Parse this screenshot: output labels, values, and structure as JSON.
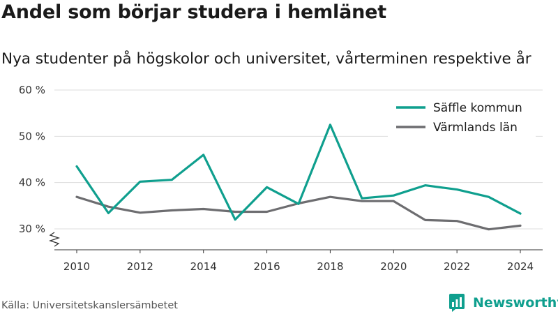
{
  "header": {
    "title": "Andel som börjar studera i hemlänet",
    "subtitle": "Nya studenter på högskolor och universitet, vårterminen respektive år"
  },
  "footer": {
    "source": "Källa: Universitetskanslersämbetet",
    "brand": "Newsworthy",
    "brand_icon": "bar-chart-logo-icon"
  },
  "colors": {
    "saffle": "#0f9f8e",
    "varmland": "#6d6d70",
    "grid": "#dddddd",
    "axis": "#333333",
    "text": "#333333",
    "brand": "#0f9f8e"
  },
  "chart_data": {
    "type": "line",
    "title": "Andel som börjar studera i hemlänet",
    "subtitle": "Nya studenter på högskolor och universitet, vårterminen respektive år",
    "xlabel": "",
    "ylabel": "",
    "x": [
      2010,
      2011,
      2012,
      2013,
      2014,
      2015,
      2016,
      2017,
      2018,
      2019,
      2020,
      2021,
      2022,
      2023,
      2024
    ],
    "x_ticks": [
      "2010",
      "2012",
      "2014",
      "2016",
      "2018",
      "2020",
      "2022",
      "2024"
    ],
    "y_ticks": [
      "30 %",
      "40 %",
      "50 %",
      "60 %"
    ],
    "y_tick_values": [
      30,
      40,
      50,
      60
    ],
    "ylim": [
      30,
      60
    ],
    "y_axis_break": true,
    "grid": true,
    "legend_position": "top-right",
    "series": [
      {
        "name": "Säffle kommun",
        "values": [
          43.5,
          33.4,
          40.2,
          40.6,
          46.0,
          32.0,
          39.0,
          35.4,
          52.5,
          36.6,
          37.2,
          39.4,
          38.5,
          36.9,
          33.3
        ]
      },
      {
        "name": "Värmlands län",
        "values": [
          36.9,
          34.8,
          33.5,
          34.0,
          34.3,
          33.7,
          33.7,
          35.5,
          36.9,
          36.0,
          36.0,
          31.9,
          31.7,
          29.9,
          30.7
        ]
      }
    ]
  }
}
